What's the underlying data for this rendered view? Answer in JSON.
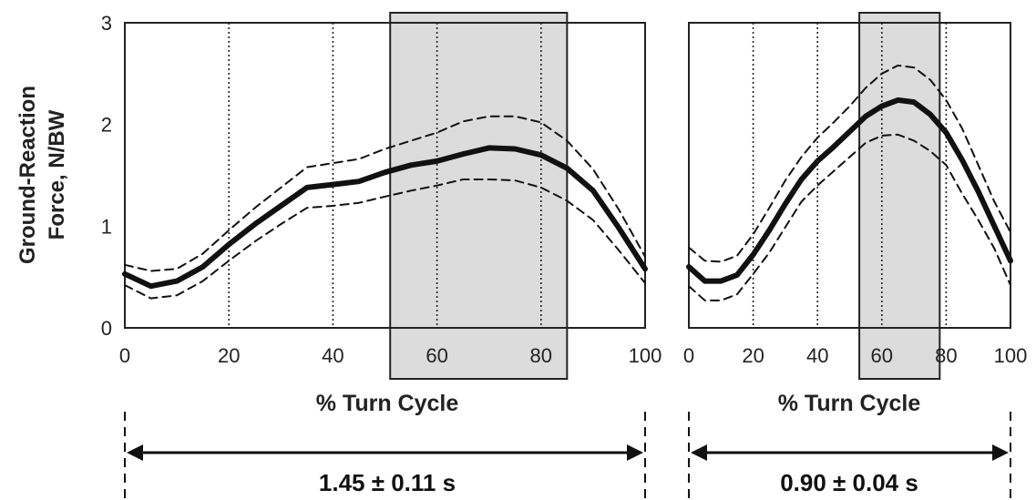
{
  "chart_data": [
    {
      "type": "line",
      "ylabel": [
        "Ground-Reaction",
        "Force, N/BW"
      ],
      "xlabel": "% Turn Cycle",
      "xlim": [
        0,
        100
      ],
      "ylim": [
        0,
        3
      ],
      "x_ticks": [
        "0",
        "20",
        "40",
        "60",
        "80",
        "100"
      ],
      "y_ticks": [
        "0",
        "1",
        "2",
        "3"
      ],
      "vlines": [
        20,
        40,
        60,
        80
      ],
      "shaded_region": [
        51,
        85
      ],
      "x": [
        0,
        5,
        10,
        15,
        20,
        25,
        30,
        35,
        40,
        45,
        50,
        55,
        60,
        65,
        70,
        75,
        80,
        85,
        90,
        95,
        100
      ],
      "series": [
        {
          "style": "mean",
          "values": [
            0.53,
            0.41,
            0.46,
            0.6,
            0.82,
            1.02,
            1.2,
            1.38,
            1.41,
            1.44,
            1.53,
            1.6,
            1.64,
            1.71,
            1.77,
            1.76,
            1.7,
            1.57,
            1.35,
            0.98,
            0.58
          ]
        },
        {
          "style": "upper",
          "values": [
            0.62,
            0.56,
            0.58,
            0.73,
            0.96,
            1.18,
            1.38,
            1.58,
            1.62,
            1.66,
            1.76,
            1.84,
            1.92,
            2.03,
            2.08,
            2.08,
            2.02,
            1.84,
            1.56,
            1.16,
            0.7
          ]
        },
        {
          "style": "lower",
          "values": [
            0.42,
            0.29,
            0.32,
            0.46,
            0.66,
            0.85,
            1.02,
            1.18,
            1.2,
            1.23,
            1.29,
            1.35,
            1.4,
            1.46,
            1.46,
            1.45,
            1.38,
            1.25,
            1.06,
            0.76,
            0.44
          ]
        }
      ],
      "duration": "1.45 ± 0.11 s"
    },
    {
      "type": "line",
      "xlabel": "% Turn Cycle",
      "xlim": [
        0,
        100
      ],
      "ylim": [
        0,
        3
      ],
      "x_ticks": [
        "0",
        "20",
        "40",
        "60",
        "80",
        "100"
      ],
      "vlines": [
        20,
        40,
        60,
        80
      ],
      "shaded_region": [
        53,
        78
      ],
      "x": [
        0,
        5,
        10,
        15,
        20,
        25,
        30,
        35,
        40,
        45,
        50,
        55,
        60,
        65,
        70,
        75,
        80,
        85,
        90,
        95,
        100
      ],
      "series": [
        {
          "style": "mean",
          "values": [
            0.6,
            0.46,
            0.46,
            0.52,
            0.72,
            0.96,
            1.22,
            1.46,
            1.64,
            1.78,
            1.93,
            2.08,
            2.18,
            2.24,
            2.22,
            2.1,
            1.92,
            1.65,
            1.34,
            1.0,
            0.66
          ]
        },
        {
          "style": "upper",
          "values": [
            0.79,
            0.66,
            0.65,
            0.71,
            0.92,
            1.18,
            1.45,
            1.68,
            1.87,
            2.02,
            2.18,
            2.36,
            2.5,
            2.58,
            2.56,
            2.44,
            2.24,
            1.96,
            1.6,
            1.24,
            0.94
          ]
        },
        {
          "style": "lower",
          "values": [
            0.41,
            0.27,
            0.27,
            0.33,
            0.53,
            0.74,
            0.99,
            1.24,
            1.4,
            1.54,
            1.68,
            1.82,
            1.89,
            1.9,
            1.84,
            1.74,
            1.6,
            1.32,
            1.06,
            0.78,
            0.42
          ]
        }
      ],
      "duration": "0.90 ± 0.04 s"
    }
  ]
}
